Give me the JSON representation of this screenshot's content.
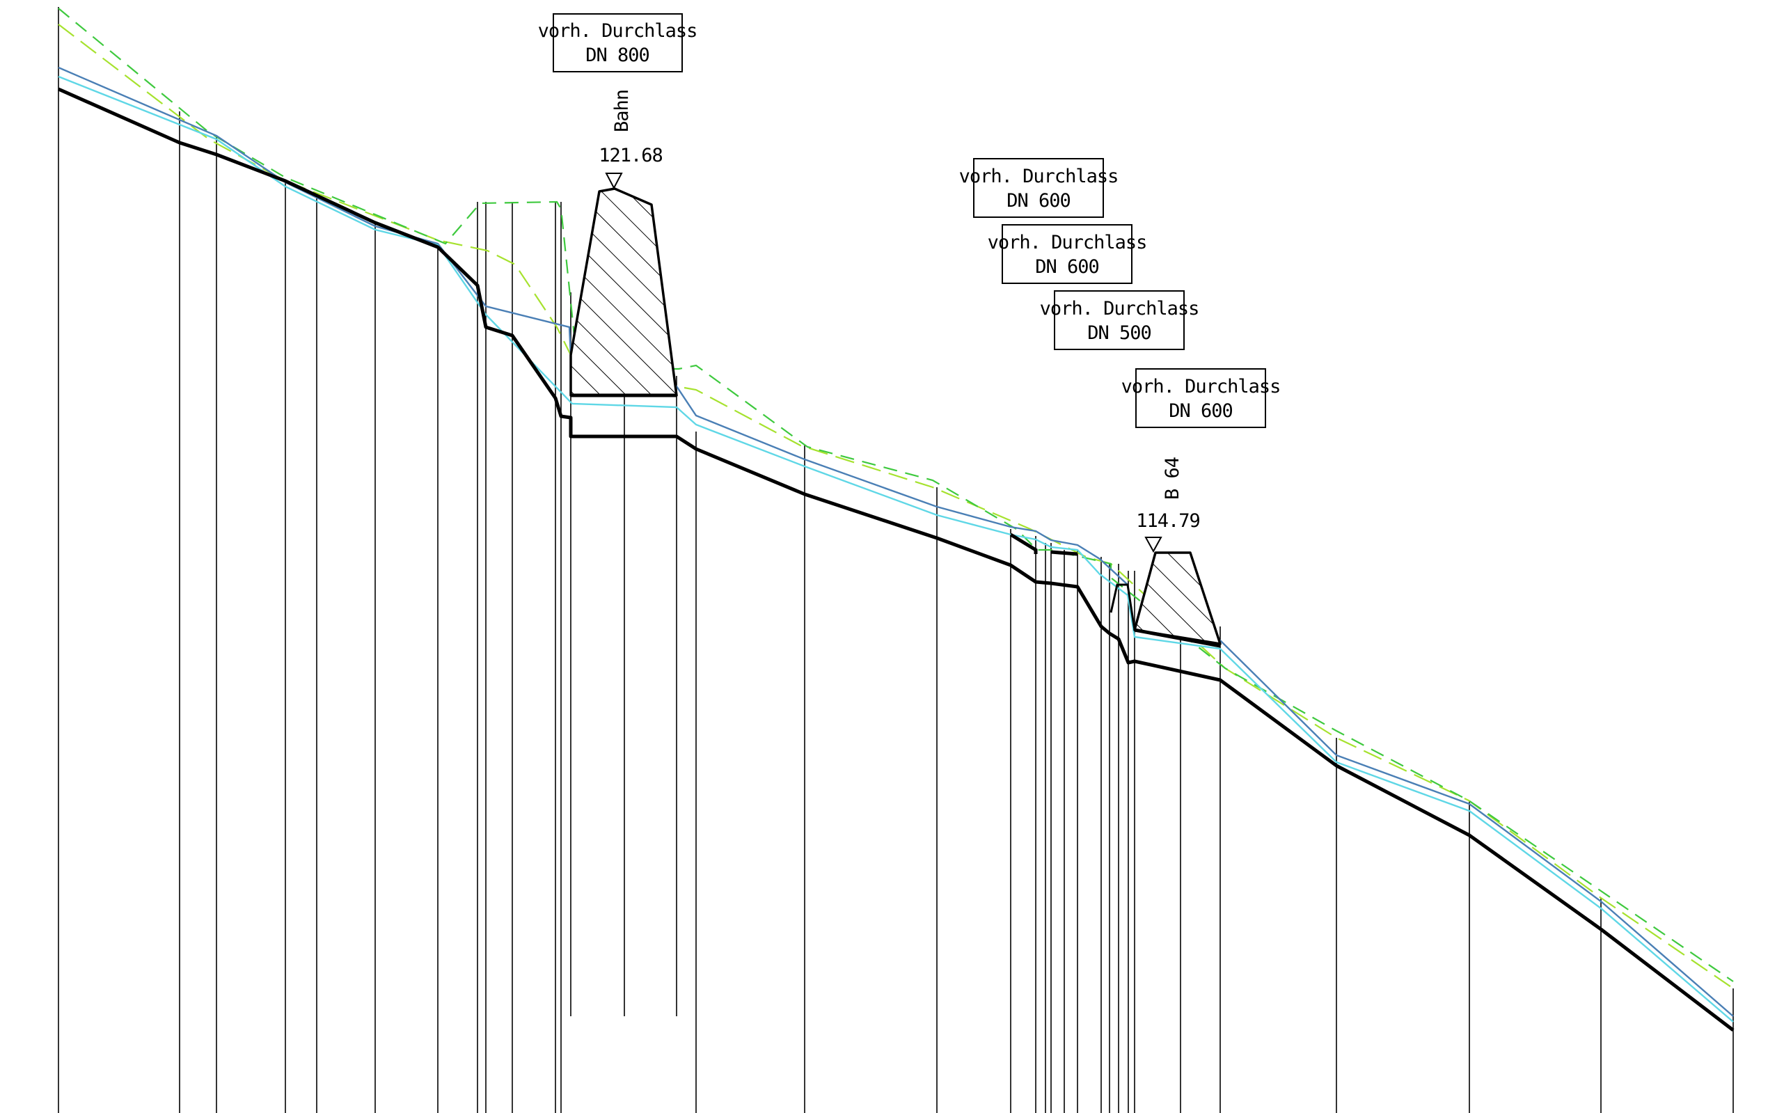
{
  "culverts": [
    {
      "line1": "vorh. Durchlass",
      "line2": "DN 800"
    },
    {
      "line1": "vorh. Durchlass",
      "line2": "DN 600"
    },
    {
      "line1": "vorh. Durchlass",
      "line2": "DN 600"
    },
    {
      "line1": "vorh. Durchlass",
      "line2": "DN 500"
    },
    {
      "line1": "vorh. Durchlass",
      "line2": "DN 600"
    }
  ],
  "crossings": [
    {
      "name": "Bahn",
      "elevation": "121.68"
    },
    {
      "name": "B 64",
      "elevation": "114.79"
    }
  ],
  "line_colors": {
    "ground": "#000000",
    "profile_blue": "#4a7fb5",
    "profile_cyan": "#5fd7e6",
    "dashed_lime": "#a6e22e",
    "dashed_green": "#3ec93e"
  }
}
